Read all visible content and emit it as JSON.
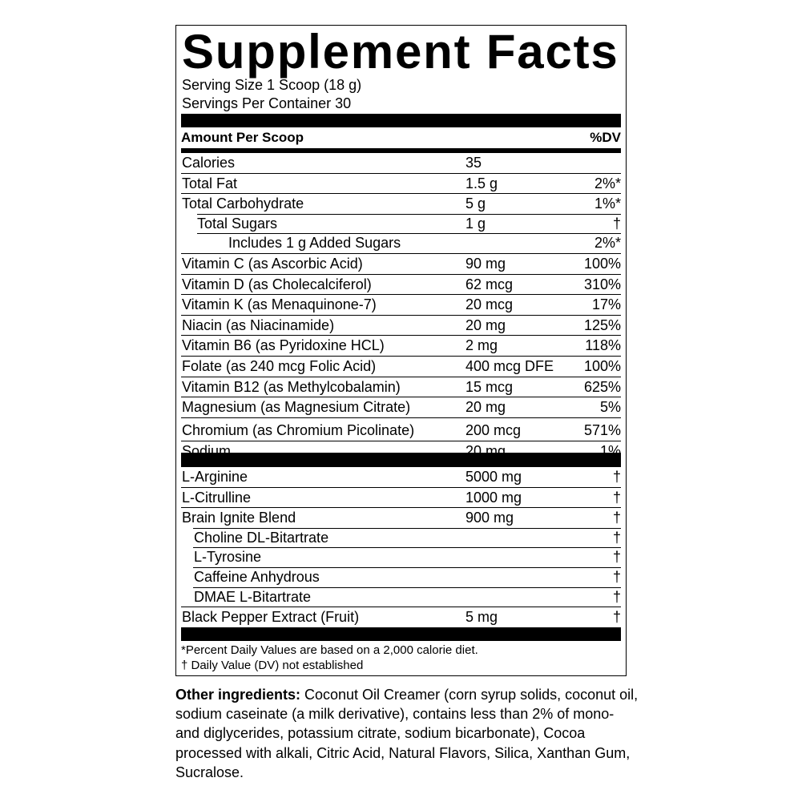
{
  "title": "Supplement Facts",
  "serving_size": "Serving Size 1 Scoop (18 g)",
  "servings_per_container": "Servings Per Container 30",
  "header": {
    "amount_label": "Amount Per Scoop",
    "dv_label": "%DV"
  },
  "nutrients": [
    {
      "name": "Calories",
      "amount": "35",
      "dv": ""
    },
    {
      "name": "Total Fat",
      "amount": "1.5 g",
      "dv": "2%*"
    },
    {
      "name": "Total Carbohydrate",
      "amount": "5 g",
      "dv": "1%*"
    },
    {
      "name": "Total Sugars",
      "amount": "1 g",
      "dv": "†"
    },
    {
      "name": "Includes 1 g Added Sugars",
      "amount": "",
      "dv": "2%*"
    },
    {
      "name": "Vitamin C (as Ascorbic Acid)",
      "amount": "90 mg",
      "dv": "100%"
    },
    {
      "name": "Vitamin D (as Cholecalciferol)",
      "amount": "62 mcg",
      "dv": "310%"
    },
    {
      "name": "Vitamin K (as Menaquinone-7)",
      "amount": "20 mcg",
      "dv": "17%"
    },
    {
      "name": "Niacin (as Niacinamide)",
      "amount": "20 mg",
      "dv": "125%"
    },
    {
      "name": "Vitamin B6 (as Pyridoxine HCL)",
      "amount": "2 mg",
      "dv": "118%"
    },
    {
      "name": "Folate (as 240 mcg Folic Acid)",
      "amount": "400 mcg DFE",
      "dv": "100%"
    },
    {
      "name": "Vitamin B12 (as Methylcobalamin)",
      "amount": "15 mcg",
      "dv": "625%"
    },
    {
      "name": "Magnesium (as Magnesium Citrate)",
      "amount": "20 mg",
      "dv": "5%"
    },
    {
      "name": "Chromium (as Chromium Picolinate)",
      "amount": "200 mcg",
      "dv": "571%"
    },
    {
      "name": "Sodium",
      "amount": "20 mg",
      "dv": "1%"
    }
  ],
  "ingredients": [
    {
      "name": "L-Arginine",
      "amount": "5000 mg",
      "dv": "†"
    },
    {
      "name": "L-Citrulline",
      "amount": "1000 mg",
      "dv": "†"
    },
    {
      "name": "Brain Ignite Blend",
      "amount": "900 mg",
      "dv": "†"
    },
    {
      "name": "Choline DL-Bitartrate",
      "amount": "",
      "dv": "†"
    },
    {
      "name": "L-Tyrosine",
      "amount": "",
      "dv": "†"
    },
    {
      "name": "Caffeine Anhydrous",
      "amount": "",
      "dv": "†"
    },
    {
      "name": "DMAE L-Bitartrate",
      "amount": "",
      "dv": "†"
    },
    {
      "name": "Black Pepper Extract (Fruit)",
      "amount": "5 mg",
      "dv": "†"
    }
  ],
  "footnotes": {
    "percent_dv": "*Percent Daily Values are based on a 2,000 calorie diet.",
    "not_established": "† Daily Value (DV) not established"
  },
  "other_ingredients": {
    "label": "Other ingredients:",
    "text": " Coconut Oil Creamer (corn syrup solids, coconut oil, sodium caseinate (a milk derivative), contains less than 2% of mono- and diglycerides, potassium citrate, sodium bicarbonate), Cocoa processed with alkali, Citric Acid, Natural Flavors, Silica, Xanthan Gum, Sucralose."
  }
}
